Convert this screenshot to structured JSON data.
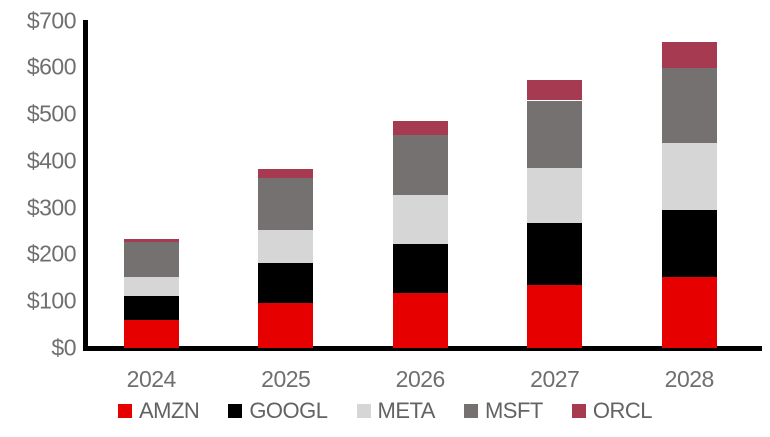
{
  "chart_data": {
    "type": "bar",
    "stacked": true,
    "title": "",
    "xlabel": "",
    "ylabel": "",
    "categories": [
      "2024",
      "2025",
      "2026",
      "2027",
      "2028"
    ],
    "series": [
      {
        "name": "AMZN",
        "color": "#e60000",
        "values": [
          60,
          96,
          117,
          135,
          152
        ]
      },
      {
        "name": "GOOGL",
        "color": "#000000",
        "values": [
          52,
          85,
          105,
          132,
          143
        ]
      },
      {
        "name": "META",
        "color": "#d6d6d6",
        "values": [
          39,
          72,
          105,
          118,
          143
        ]
      },
      {
        "name": "MSFT",
        "color": "#757171",
        "values": [
          75,
          110,
          128,
          144,
          161
        ]
      },
      {
        "name": "ORCL",
        "color": "#a63a50",
        "values": [
          7,
          20,
          30,
          43,
          56
        ]
      }
    ],
    "totals": [
      233,
      383,
      485,
      572,
      655
    ],
    "y_ticks": [
      "$0",
      "$100",
      "$200",
      "$300",
      "$400",
      "$500",
      "$600",
      "$700"
    ],
    "ylim": [
      0,
      700
    ],
    "y_tick_step": 100,
    "currency_prefix": "$",
    "grid": false,
    "legend_position": "bottom"
  },
  "colors": {
    "background": "#ffffff",
    "axis": "#000000",
    "tick_label": "#6f6f6f",
    "legend_label": "#636363"
  }
}
